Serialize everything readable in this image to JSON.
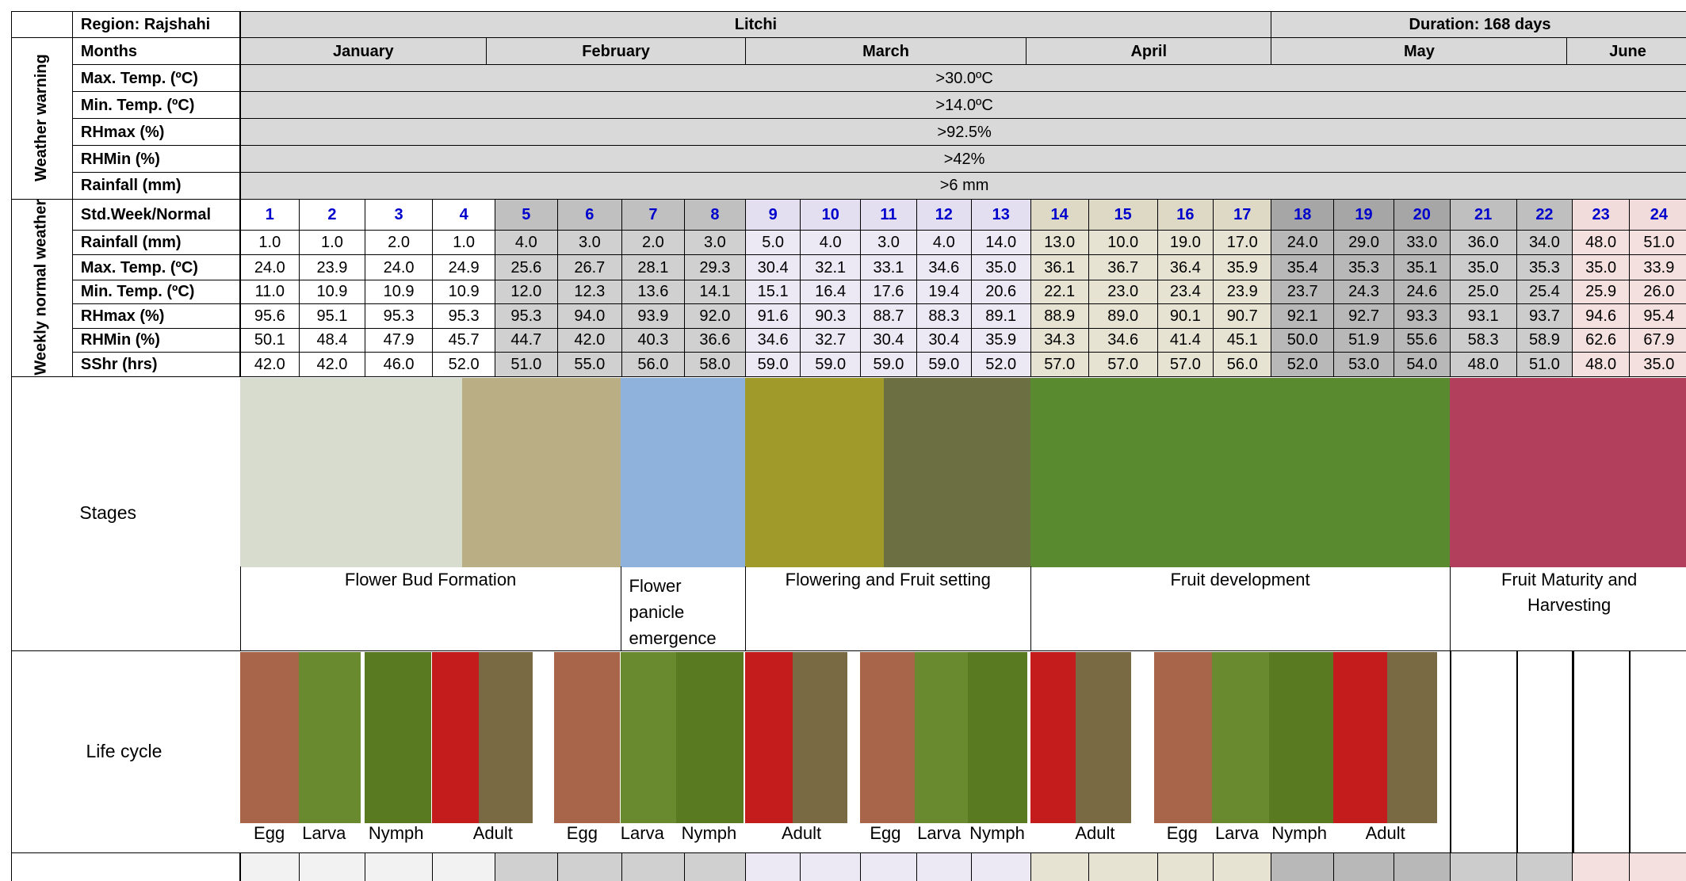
{
  "header": {
    "region": "Region: Rajshahi",
    "crop": "Litchi",
    "duration": "Duration: 168 days"
  },
  "months": {
    "label": "Months",
    "names": [
      "January",
      "February",
      "March",
      "April",
      "May",
      "June"
    ]
  },
  "weather_warning": {
    "label": "Weather warning",
    "rows": [
      {
        "label": "Max. Temp. (ºC)",
        "value": ">30.0ºC"
      },
      {
        "label": "Min. Temp. (ºC)",
        "value": ">14.0ºC"
      },
      {
        "label": "RHmax (%)",
        "value": ">92.5%"
      },
      {
        "label": "RHMin (%)",
        "value": ">42%"
      },
      {
        "label": "Rainfall (mm)",
        "value": ">6 mm"
      }
    ]
  },
  "weekly_normal": {
    "label": "Weekly normal weather",
    "header_label": "Std.Week/Normal",
    "weeks": [
      1,
      2,
      3,
      4,
      5,
      6,
      7,
      8,
      9,
      10,
      11,
      12,
      13,
      14,
      15,
      16,
      17,
      18,
      19,
      20,
      21,
      22,
      23,
      24
    ],
    "rows": [
      {
        "label": "Rainfall (mm)",
        "values": [
          "1.0",
          "1.0",
          "2.0",
          "1.0",
          "4.0",
          "3.0",
          "2.0",
          "3.0",
          "5.0",
          "4.0",
          "3.0",
          "4.0",
          "14.0",
          "13.0",
          "10.0",
          "19.0",
          "17.0",
          "24.0",
          "29.0",
          "33.0",
          "36.0",
          "34.0",
          "48.0",
          "51.0"
        ]
      },
      {
        "label": "Max. Temp. (ºC)",
        "values": [
          "24.0",
          "23.9",
          "24.0",
          "24.9",
          "25.6",
          "26.7",
          "28.1",
          "29.3",
          "30.4",
          "32.1",
          "33.1",
          "34.6",
          "35.0",
          "36.1",
          "36.7",
          "36.4",
          "35.9",
          "35.4",
          "35.3",
          "35.1",
          "35.0",
          "35.3",
          "35.0",
          "33.9"
        ]
      },
      {
        "label": "Min. Temp. (ºC)",
        "values": [
          "11.0",
          "10.9",
          "10.9",
          "10.9",
          "12.0",
          "12.3",
          "13.6",
          "14.1",
          "15.1",
          "16.4",
          "17.6",
          "19.4",
          "20.6",
          "22.1",
          "23.0",
          "23.4",
          "23.9",
          "23.7",
          "24.3",
          "24.6",
          "25.0",
          "25.4",
          "25.9",
          "26.0"
        ]
      },
      {
        "label": "RHmax (%)",
        "values": [
          "95.6",
          "95.1",
          "95.3",
          "95.3",
          "95.3",
          "94.0",
          "93.9",
          "92.0",
          "91.6",
          "90.3",
          "88.7",
          "88.3",
          "89.1",
          "88.9",
          "89.0",
          "90.1",
          "90.7",
          "92.1",
          "92.7",
          "93.3",
          "93.1",
          "93.7",
          "94.6",
          "95.4"
        ]
      },
      {
        "label": "RHMin (%)",
        "values": [
          "50.1",
          "48.4",
          "47.9",
          "45.7",
          "44.7",
          "42.0",
          "40.3",
          "36.6",
          "34.6",
          "32.7",
          "30.4",
          "30.4",
          "35.9",
          "34.3",
          "34.6",
          "41.4",
          "45.1",
          "50.0",
          "51.9",
          "55.6",
          "58.3",
          "58.9",
          "62.6",
          "67.9"
        ]
      },
      {
        "label": "SShr (hrs)",
        "values": [
          "42.0",
          "42.0",
          "46.0",
          "52.0",
          "51.0",
          "55.0",
          "56.0",
          "58.0",
          "59.0",
          "59.0",
          "59.0",
          "59.0",
          "52.0",
          "57.0",
          "57.0",
          "57.0",
          "56.0",
          "52.0",
          "53.0",
          "54.0",
          "48.0",
          "51.0",
          "48.0",
          "35.0"
        ]
      }
    ]
  },
  "stages": {
    "label": "Stages",
    "items": [
      "Flower Bud Formation",
      "Flower panicle emergence",
      "Flowering and Fruit setting",
      "Fruit development",
      "Fruit Maturity and Harvesting"
    ]
  },
  "life_cycle": {
    "label": "Life cycle",
    "items": [
      "Egg",
      "Larva",
      "Nymph",
      "Adult",
      "Egg",
      "Larva",
      "Nymph",
      "Adult",
      "Egg",
      "Larva",
      "Nymph",
      "Adult",
      "Egg",
      "Larva",
      "Nymph",
      "Adult"
    ]
  }
}
